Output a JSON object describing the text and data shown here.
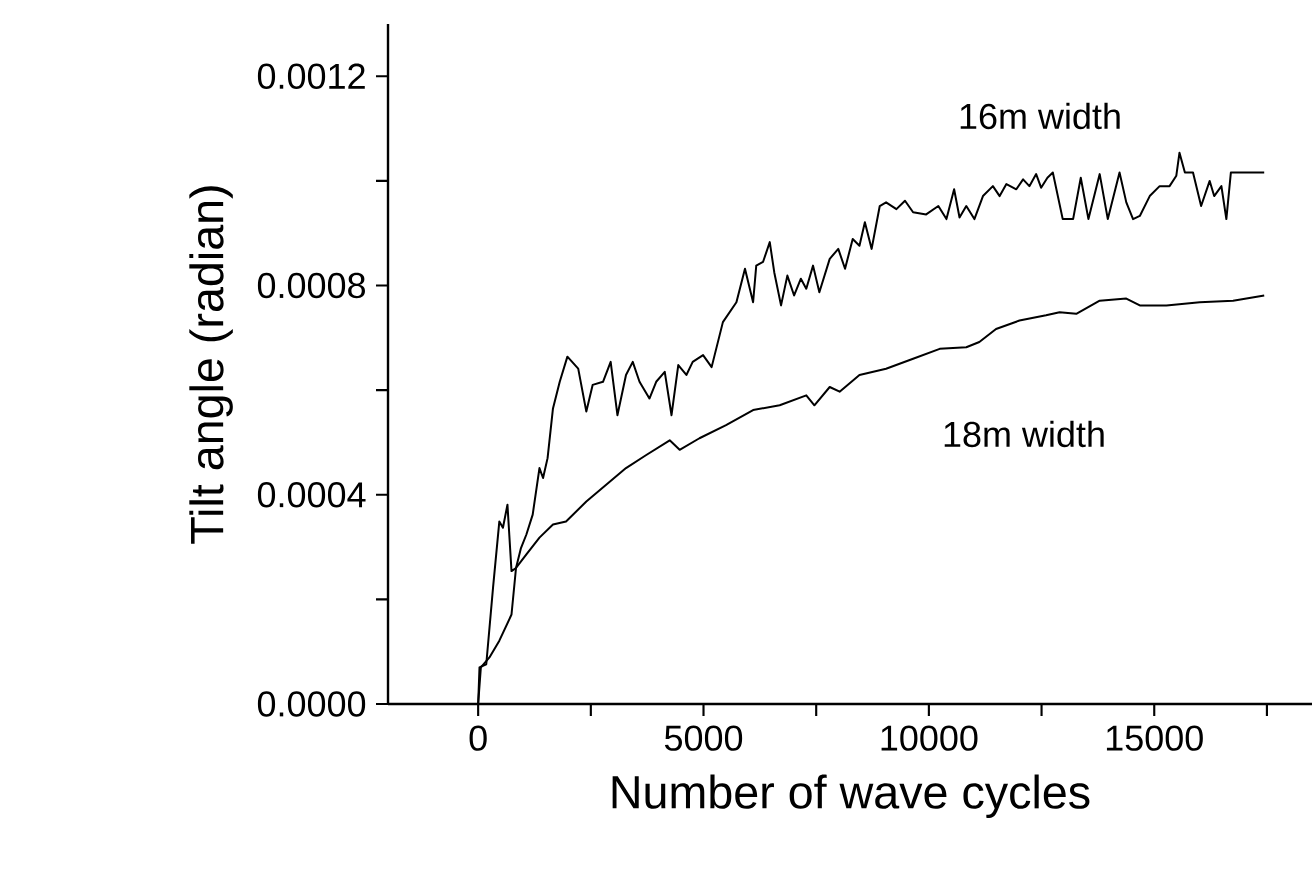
{
  "chart_data": {
    "type": "line",
    "xlabel": "Number of wave cycles",
    "ylabel": "Tilt angle (radian)",
    "xlim": [
      -2000,
      18500
    ],
    "ylim": [
      0,
      0.0013
    ],
    "xticks": [
      0,
      {
        "value": 2500,
        "label": null
      },
      5000,
      {
        "value": 7500,
        "label": null
      },
      10000,
      {
        "value": 12500,
        "label": null
      },
      15000,
      {
        "value": 17500,
        "label": null
      }
    ],
    "yticks": [
      {
        "value": 0,
        "label": "0.0000"
      },
      {
        "value": 0.0002,
        "label": null
      },
      {
        "value": 0.0004,
        "label": "0.0004"
      },
      {
        "value": 0.0006,
        "label": null
      },
      {
        "value": 0.0008,
        "label": "0.0008"
      },
      {
        "value": 0.001,
        "label": null
      },
      {
        "value": 0.0012,
        "label": "0.0012"
      }
    ],
    "grid": false,
    "marker": "none",
    "line_style": "solid",
    "series": [
      {
        "name": "16m width",
        "color": "#000000",
        "x": [
          0,
          30,
          180,
          330,
          470,
          550,
          650,
          740,
          840,
          950,
          1070,
          1210,
          1360,
          1440,
          1540,
          1660,
          1810,
          1980,
          2220,
          2400,
          2540,
          2770,
          2940,
          3090,
          3280,
          3430,
          3580,
          3800,
          3950,
          4140,
          4290,
          4440,
          4620,
          4760,
          4990,
          5180,
          5430,
          5730,
          5920,
          6100,
          6170,
          6320,
          6470,
          6570,
          6720,
          6860,
          7010,
          7160,
          7280,
          7430,
          7570,
          7800,
          7990,
          8140,
          8310,
          8460,
          8580,
          8730,
          8910,
          9050,
          9280,
          9470,
          9650,
          9940,
          10210,
          10390,
          10560,
          10680,
          10830,
          11010,
          11200,
          11420,
          11570,
          11720,
          11940,
          12090,
          12230,
          12380,
          12490,
          12630,
          12750,
          12970,
          13200,
          13370,
          13540,
          13790,
          13970,
          14230,
          14380,
          14530,
          14680,
          14900,
          15120,
          15340,
          15490,
          15560,
          15680,
          15860,
          16040,
          16230,
          16330,
          16490,
          16600,
          16700,
          17440
        ],
        "values": [
          0,
          7e-05,
          7.6e-05,
          0.000222,
          0.000349,
          0.000337,
          0.000381,
          0.000254,
          0.00026,
          0.000298,
          0.000324,
          0.000362,
          0.000451,
          0.000432,
          0.00047,
          0.000565,
          0.000616,
          0.000664,
          0.000641,
          0.000559,
          0.00061,
          0.000616,
          0.000654,
          0.000552,
          0.000629,
          0.000654,
          0.000616,
          0.000584,
          0.000616,
          0.000635,
          0.000552,
          0.000648,
          0.000629,
          0.000654,
          0.000667,
          0.000644,
          0.00073,
          0.000768,
          0.000832,
          0.000768,
          0.000838,
          0.000845,
          0.000883,
          0.000825,
          0.000762,
          0.000819,
          0.000781,
          0.000813,
          0.000794,
          0.000838,
          0.000787,
          0.000851,
          0.00087,
          0.000832,
          0.000889,
          0.000876,
          0.000921,
          0.00087,
          0.000952,
          0.000959,
          0.000946,
          0.000962,
          0.00094,
          0.000936,
          0.000952,
          0.000927,
          0.000984,
          0.00093,
          0.000952,
          0.000927,
          0.000971,
          0.00099,
          0.000971,
          0.000994,
          0.000984,
          0.001003,
          0.00099,
          0.001013,
          0.000987,
          0.001006,
          0.001016,
          0.000927,
          0.000927,
          0.001006,
          0.000927,
          0.001013,
          0.000927,
          0.001016,
          0.000959,
          0.000927,
          0.000933,
          0.000971,
          0.00099,
          0.00099,
          0.00101,
          0.001054,
          0.001016,
          0.001016,
          0.000952,
          0.001,
          0.000971,
          0.00099,
          0.000927,
          0.001016,
          0.001016
        ]
      },
      {
        "name": "18m width",
        "color": "#000000",
        "x": [
          0,
          60,
          250,
          470,
          740,
          840,
          1070,
          1360,
          1660,
          1950,
          2400,
          2840,
          3280,
          3730,
          4250,
          4470,
          4910,
          5500,
          6100,
          6690,
          7280,
          7460,
          7800,
          8020,
          8460,
          9050,
          9650,
          10240,
          10830,
          11120,
          11490,
          12010,
          12600,
          12900,
          13270,
          13790,
          14380,
          14680,
          15270,
          16010,
          16750,
          17440
        ],
        "values": [
          0,
          7e-05,
          8.9e-05,
          0.000121,
          0.000171,
          0.00026,
          0.000286,
          0.000318,
          0.000343,
          0.000349,
          0.000387,
          0.000419,
          0.000451,
          0.000476,
          0.000504,
          0.000486,
          0.000508,
          0.000533,
          0.000562,
          0.000571,
          0.00059,
          0.000571,
          0.000606,
          0.000597,
          0.000629,
          0.000641,
          0.00066,
          0.000679,
          0.000682,
          0.000692,
          0.000717,
          0.000733,
          0.000743,
          0.000749,
          0.000746,
          0.000771,
          0.000775,
          0.000762,
          0.000762,
          0.000768,
          0.000771,
          0.000781
        ]
      }
    ]
  }
}
